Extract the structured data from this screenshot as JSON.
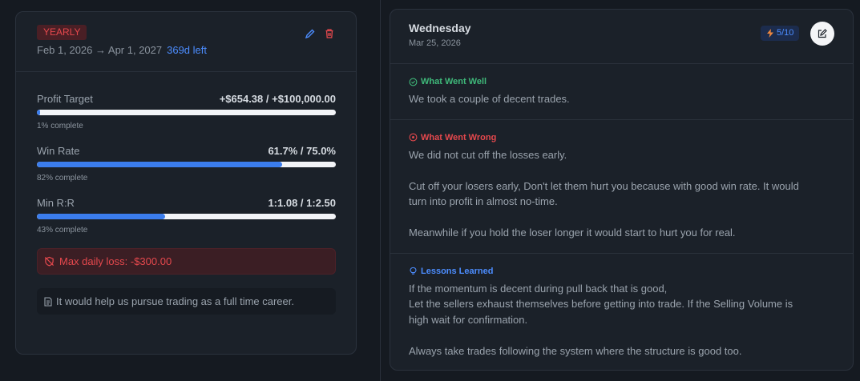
{
  "goal_card": {
    "badge": "YEARLY",
    "date_range": "Feb 1, 2026 → Apr 1, 2027",
    "days_left": "369d left",
    "metrics": [
      {
        "label": "Profit Target",
        "value": "+$654.38 / +$100,000.00",
        "percent": 1,
        "complete_label": "1% complete"
      },
      {
        "label": "Win Rate",
        "value": "61.7% / 75.0%",
        "percent": 82,
        "complete_label": "82% complete"
      },
      {
        "label": "Min R:R",
        "value": "1:1.08 / 1:2.50",
        "percent": 43,
        "complete_label": "43% complete"
      }
    ],
    "alert": "Max daily loss: -$300.00",
    "note": "It would help us pursue trading as a full time career."
  },
  "journal_card": {
    "day": "Wednesday",
    "date": "Mar 25, 2026",
    "rating": "5/10",
    "sections": [
      {
        "title": "What Went Well",
        "paragraphs": [
          [
            "We took a couple of decent trades."
          ]
        ]
      },
      {
        "title": "What Went Wrong",
        "paragraphs": [
          [
            "We did not cut off the losses early."
          ],
          [
            "Cut off your losers early, Don't let them hurt you because with good win rate. It would",
            "turn into profit in almost no-time."
          ],
          [
            "Meanwhile if you hold the loser longer it would start to hurt you for real."
          ]
        ]
      },
      {
        "title": "Lessons Learned",
        "paragraphs": [
          [
            "If the momentum is decent during pull back that is good,",
            "Let the sellers exhaust themselves before getting into trade. If the Selling Volume is",
            "high wait for confirmation."
          ],
          [
            "Always take trades following the system where the structure is good too."
          ]
        ]
      }
    ]
  }
}
